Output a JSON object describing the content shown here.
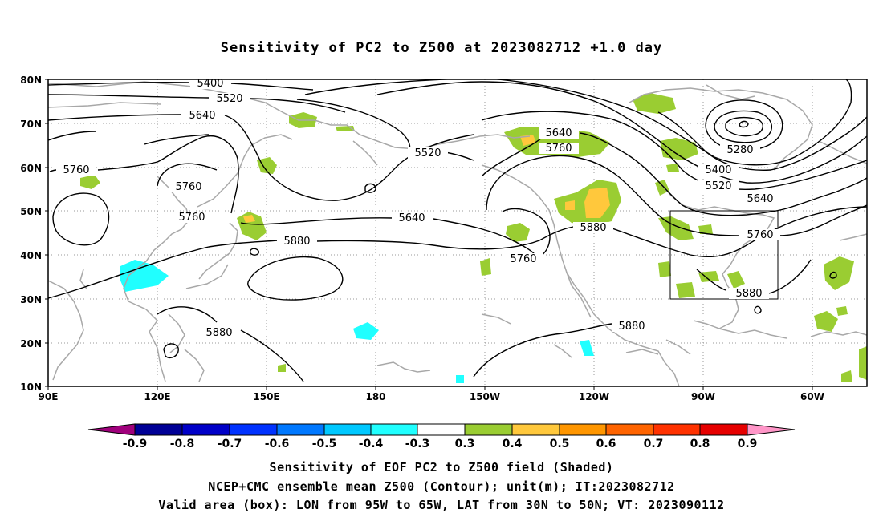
{
  "title": "Sensitivity of PC2 to Z500 at 2023082712 +1.0 day",
  "map": {
    "lat_labels": [
      "80N",
      "70N",
      "60N",
      "50N",
      "40N",
      "30N",
      "20N",
      "10N"
    ],
    "lon_labels": [
      "90E",
      "120E",
      "150E",
      "180",
      "150W",
      "120W",
      "90W",
      "60W"
    ],
    "contour_labels": {
      "c5400a": "5400",
      "c5520a": "5520",
      "c5640a": "5640",
      "c5760a": "5760",
      "c5760b": "5760",
      "c5760c": "5760",
      "c5880a": "5880",
      "c5880b": "5880",
      "c5520b": "5520",
      "c5640b": "5640",
      "c5760d": "5760",
      "c5640c": "5640",
      "c5760e": "5760",
      "c5880c": "5880",
      "c5880d": "5880",
      "c5280": "5280",
      "c5400b": "5400",
      "c5520c": "5520",
      "c5640d": "5640",
      "c5760f": "5760",
      "c5880e": "5880"
    },
    "contour_color": "#000000",
    "coast_color": "#a0a0a0",
    "shade_colors": {
      "pos_0.3": "#9acd32",
      "pos_0.4": "#ffc83c",
      "neg_0.4": "#20ffff",
      "neg_0.3": "#00c8ff"
    },
    "valid_box": {
      "lon_min": -95,
      "lon_max": -65,
      "lat_min": 30,
      "lat_max": 50
    }
  },
  "colorbar": {
    "labels": [
      "-0.9",
      "-0.8",
      "-0.7",
      "-0.6",
      "-0.5",
      "-0.4",
      "-0.3",
      "0.3",
      "0.4",
      "0.5",
      "0.6",
      "0.7",
      "0.8",
      "0.9"
    ],
    "colors": [
      "#a0007c",
      "#000096",
      "#0000c8",
      "#0032ff",
      "#0078ff",
      "#00c8ff",
      "#20ffff",
      "#ffffff",
      "#9acd32",
      "#ffc83c",
      "#ff9600",
      "#ff6400",
      "#ff3200",
      "#e60000",
      "#ff96c8"
    ]
  },
  "captions": {
    "line1": "Sensitivity of EOF PC2 to Z500 field (Shaded)",
    "line2": "NCEP+CMC ensemble mean Z500 (Contour); unit(m); IT:2023082712",
    "line3": "Valid area (box): LON from 95W to 65W, LAT from 30N to 50N; VT: 2023090112"
  }
}
